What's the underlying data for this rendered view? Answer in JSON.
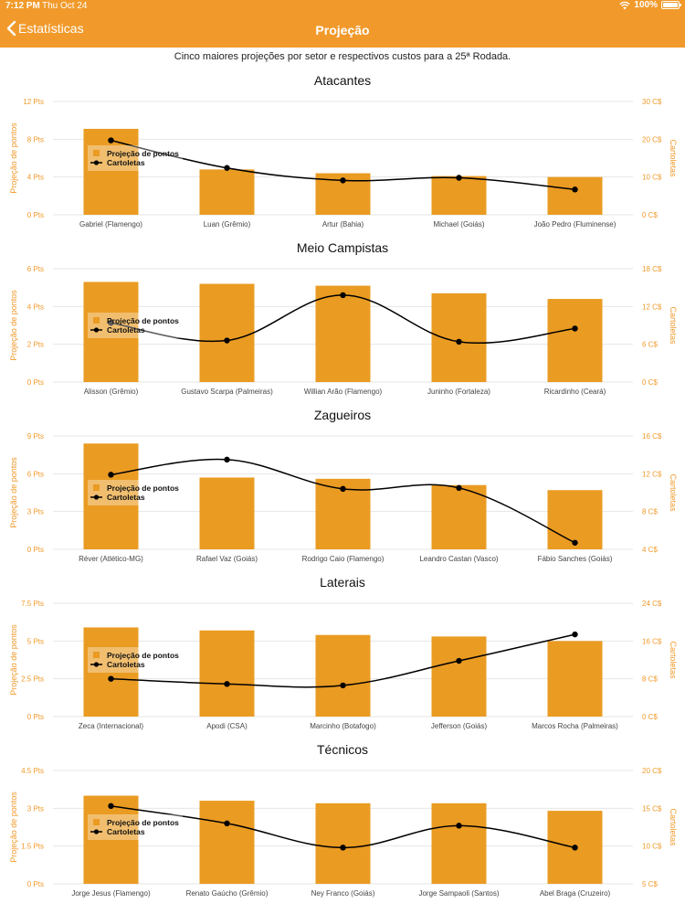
{
  "status_bar": {
    "time": "7:12 PM",
    "date": "Thu Oct 24",
    "battery": "100%"
  },
  "nav": {
    "back_label": "Estatísticas",
    "title": "Projeção"
  },
  "subtitle": "Cinco maiores projeções por setor e respectivos custos para a 25ª Rodada.",
  "colors": {
    "accent": "#f19a2b",
    "bar": "#ea9b22",
    "line": "#000000"
  },
  "chart_data": [
    {
      "type": "bar",
      "title": "Atacantes",
      "ylabel": "Projeção de pontos",
      "y2label": "Cartoletas",
      "categories": [
        "Gabriel (Flamengo)",
        "Luan (Grêmio)",
        "Artur (Bahia)",
        "Michael (Goiás)",
        "João Pedro (Fluminense)"
      ],
      "ylim": [
        0,
        12
      ],
      "yticks": [
        "0 Pts",
        "4 Pts",
        "8 Pts",
        "12 Pts"
      ],
      "y2lim": [
        0,
        30
      ],
      "y2ticks": [
        "0 C$",
        "10 C$",
        "20 C$",
        "30 C$"
      ],
      "series": [
        {
          "name": "Projeção de pontos",
          "type": "bar",
          "values": [
            9.1,
            4.8,
            4.4,
            4.1,
            4.0
          ]
        },
        {
          "name": "Cartoletas",
          "type": "line",
          "values": [
            19.7,
            12.4,
            9.1,
            9.8,
            6.7
          ]
        }
      ],
      "legend": "top-left"
    },
    {
      "type": "bar",
      "title": "Meio Campistas",
      "ylabel": "Projeção de pontos",
      "y2label": "Cartoletas",
      "categories": [
        "Alisson (Grêmio)",
        "Gustavo Scarpa (Palmeiras)",
        "Willian Arão (Flamengo)",
        "Juninho (Fortaleza)",
        "Ricardinho (Ceará)"
      ],
      "ylim": [
        0,
        6
      ],
      "yticks": [
        "0 Pts",
        "2 Pts",
        "4 Pts",
        "6 Pts"
      ],
      "y2lim": [
        0,
        18
      ],
      "y2ticks": [
        "0 C$",
        "6 C$",
        "12 C$",
        "18 C$"
      ],
      "series": [
        {
          "name": "Projeção de pontos",
          "type": "bar",
          "values": [
            5.3,
            5.2,
            5.1,
            4.7,
            4.4
          ]
        },
        {
          "name": "Cartoletas",
          "type": "line",
          "values": [
            9.4,
            6.6,
            13.8,
            6.4,
            8.5
          ]
        }
      ],
      "legend": "top-left"
    },
    {
      "type": "bar",
      "title": "Zagueiros",
      "ylabel": "Projeção de pontos",
      "y2label": "Cartoletas",
      "categories": [
        "Réver (Atlético-MG)",
        "Rafael Vaz (Goiás)",
        "Rodrigo Caio (Flamengo)",
        "Leandro Castan (Vasco)",
        "Fábio Sanches (Goiás)"
      ],
      "ylim": [
        0,
        9
      ],
      "yticks": [
        "0 Pts",
        "3 Pts",
        "6 Pts",
        "9 Pts"
      ],
      "y2lim": [
        4,
        16
      ],
      "y2ticks": [
        "4 C$",
        "8 C$",
        "12 C$",
        "16 C$"
      ],
      "series": [
        {
          "name": "Projeção de pontos",
          "type": "bar",
          "values": [
            8.4,
            5.7,
            5.6,
            5.1,
            4.7
          ]
        },
        {
          "name": "Cartoletas",
          "type": "line",
          "values": [
            11.9,
            13.5,
            10.4,
            10.5,
            4.7
          ]
        }
      ],
      "legend": "top-left"
    },
    {
      "type": "bar",
      "title": "Laterais",
      "ylabel": "Projeção de pontos",
      "y2label": "Cartoletas",
      "categories": [
        "Zeca (Internacional)",
        "Apodi (CSA)",
        "Marcinho (Botafogo)",
        "Jefferson (Goiás)",
        "Marcos Rocha (Palmeiras)"
      ],
      "ylim": [
        0,
        7.5
      ],
      "yticks": [
        "0 Pts",
        "2.5 Pts",
        "5 Pts",
        "7.5 Pts"
      ],
      "y2lim": [
        0,
        24
      ],
      "y2ticks": [
        "0 C$",
        "8 C$",
        "16 C$",
        "24 C$"
      ],
      "series": [
        {
          "name": "Projeção de pontos",
          "type": "bar",
          "values": [
            5.9,
            5.7,
            5.4,
            5.3,
            5.0
          ]
        },
        {
          "name": "Cartoletas",
          "type": "line",
          "values": [
            8.0,
            6.9,
            6.6,
            11.8,
            17.4
          ]
        }
      ],
      "legend": "top-left"
    },
    {
      "type": "bar",
      "title": "Técnicos",
      "ylabel": "Projeção de pontos",
      "y2label": "Cartoletas",
      "categories": [
        "Jorge Jesus (Flamengo)",
        "Renato Gaúcho (Grêmio)",
        "Ney Franco (Goiás)",
        "Jorge Sampaoli (Santos)",
        "Abel Braga (Cruzeiro)"
      ],
      "ylim": [
        0,
        4.5
      ],
      "yticks": [
        "0 Pts",
        "1.5 Pts",
        "3 Pts",
        "4.5 Pts"
      ],
      "y2lim": [
        5,
        20
      ],
      "y2ticks": [
        "5 C$",
        "10 C$",
        "15 C$",
        "20 C$"
      ],
      "series": [
        {
          "name": "Projeção de pontos",
          "type": "bar",
          "values": [
            3.5,
            3.3,
            3.2,
            3.2,
            2.9
          ]
        },
        {
          "name": "Cartoletas",
          "type": "line",
          "values": [
            15.3,
            13.0,
            9.8,
            12.7,
            9.8
          ]
        }
      ],
      "legend": "top-left"
    }
  ]
}
